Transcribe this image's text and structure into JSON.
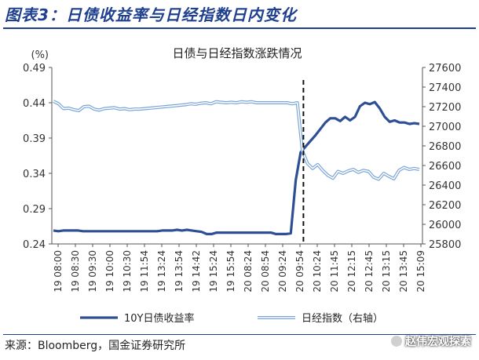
{
  "figure_title": "图表3：日债收益率与日经指数日内变化",
  "source": "来源：Bloomberg，国金证券研究所",
  "watermark": "赵伟宏观探索",
  "chart_data": {
    "type": "line",
    "title": "日债与日经指数涨跌情况",
    "y_left_label": "(%)",
    "y_left_lim": [
      0.24,
      0.49
    ],
    "y_left_ticks": [
      "0.49",
      "0.44",
      "0.39",
      "0.34",
      "0.29",
      "0.24"
    ],
    "y_right_lim": [
      25800,
      27600
    ],
    "y_right_ticks": [
      "27600",
      "27400",
      "27200",
      "27000",
      "26800",
      "26600",
      "26400",
      "26200",
      "26000",
      "25800"
    ],
    "x_labels": [
      "19 08:00",
      "19 08:30",
      "19 09:30",
      "19 10:00",
      "19 10:30",
      "19 11:54",
      "19 13:24",
      "19 13:54",
      "19 14:42",
      "19 15:24",
      "19 15:54",
      "20 08:24",
      "20 08:54",
      "20 09:24",
      "20 09:54",
      "20 10:24",
      "20 11:45",
      "20 12:15",
      "20 12:45",
      "20 13:15",
      "20 13:45",
      "20 15:09"
    ],
    "vertical_marker_index": 14.2,
    "series": [
      {
        "name": "10Y日债收益率",
        "axis": "left",
        "color": "#2e4f95",
        "values": [
          0.259,
          0.258,
          0.259,
          0.259,
          0.259,
          0.259,
          0.258,
          0.258,
          0.258,
          0.258,
          0.258,
          0.258,
          0.258,
          0.258,
          0.258,
          0.258,
          0.258,
          0.258,
          0.258,
          0.258,
          0.258,
          0.258,
          0.259,
          0.259,
          0.259,
          0.26,
          0.259,
          0.26,
          0.259,
          0.258,
          0.257,
          0.254,
          0.254,
          0.256,
          0.256,
          0.256,
          0.256,
          0.256,
          0.256,
          0.256,
          0.256,
          0.256,
          0.256,
          0.256,
          0.256,
          0.254,
          0.254,
          0.254,
          0.255,
          0.33,
          0.37,
          0.378,
          0.386,
          0.394,
          0.403,
          0.412,
          0.418,
          0.418,
          0.414,
          0.42,
          0.415,
          0.42,
          0.435,
          0.44,
          0.438,
          0.441,
          0.432,
          0.42,
          0.413,
          0.415,
          0.412,
          0.412,
          0.41,
          0.411,
          0.41
        ]
      },
      {
        "name": "日经指数（右轴）",
        "axis": "right",
        "color": "#7aa5d8",
        "values": [
          27255,
          27230,
          27180,
          27185,
          27170,
          27160,
          27200,
          27205,
          27175,
          27165,
          27180,
          27185,
          27190,
          27175,
          27180,
          27170,
          27175,
          27175,
          27180,
          27185,
          27190,
          27195,
          27200,
          27205,
          27210,
          27215,
          27220,
          27230,
          27225,
          27235,
          27240,
          27230,
          27250,
          27245,
          27240,
          27245,
          27240,
          27250,
          27245,
          27250,
          27240,
          27240,
          27240,
          27240,
          27240,
          27240,
          27240,
          27230,
          27240,
          26750,
          26620,
          26570,
          26610,
          26550,
          26500,
          26470,
          26540,
          26520,
          26545,
          26560,
          26530,
          26550,
          26540,
          26480,
          26460,
          26520,
          26490,
          26465,
          26550,
          26580,
          26560,
          26570,
          26560
        ]
      }
    ],
    "legend_position": "bottom"
  }
}
